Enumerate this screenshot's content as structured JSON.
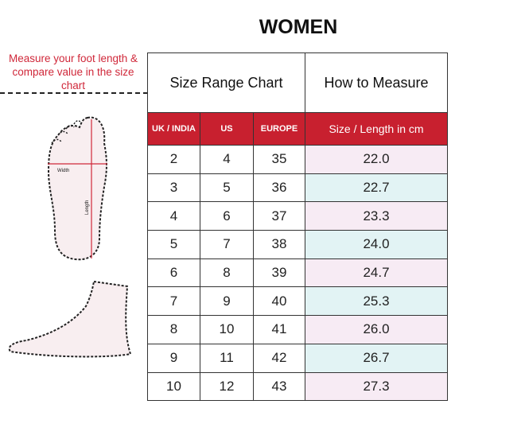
{
  "title": "WOMEN",
  "instruction": "Measure your foot length & compare value in the size chart",
  "foot_labels": {
    "width": "Width",
    "length": "Length"
  },
  "table": {
    "header_left": "Size Range Chart",
    "header_right": "How to Measure",
    "columns": [
      "UK / INDIA",
      "US",
      "EUROPE",
      "Size / Length in cm"
    ],
    "rows": [
      [
        "2",
        "4",
        "35",
        "22.0"
      ],
      [
        "3",
        "5",
        "36",
        "22.7"
      ],
      [
        "4",
        "6",
        "37",
        "23.3"
      ],
      [
        "5",
        "7",
        "38",
        "24.0"
      ],
      [
        "6",
        "8",
        "39",
        "24.7"
      ],
      [
        "7",
        "9",
        "40",
        "25.3"
      ],
      [
        "8",
        "10",
        "41",
        "26.0"
      ],
      [
        "9",
        "11",
        "42",
        "26.7"
      ],
      [
        "10",
        "12",
        "43",
        "27.3"
      ]
    ]
  },
  "colors": {
    "accent": "#c8202f",
    "row_pink": "#f7ebf4",
    "row_cyan": "#e2f3f4"
  }
}
